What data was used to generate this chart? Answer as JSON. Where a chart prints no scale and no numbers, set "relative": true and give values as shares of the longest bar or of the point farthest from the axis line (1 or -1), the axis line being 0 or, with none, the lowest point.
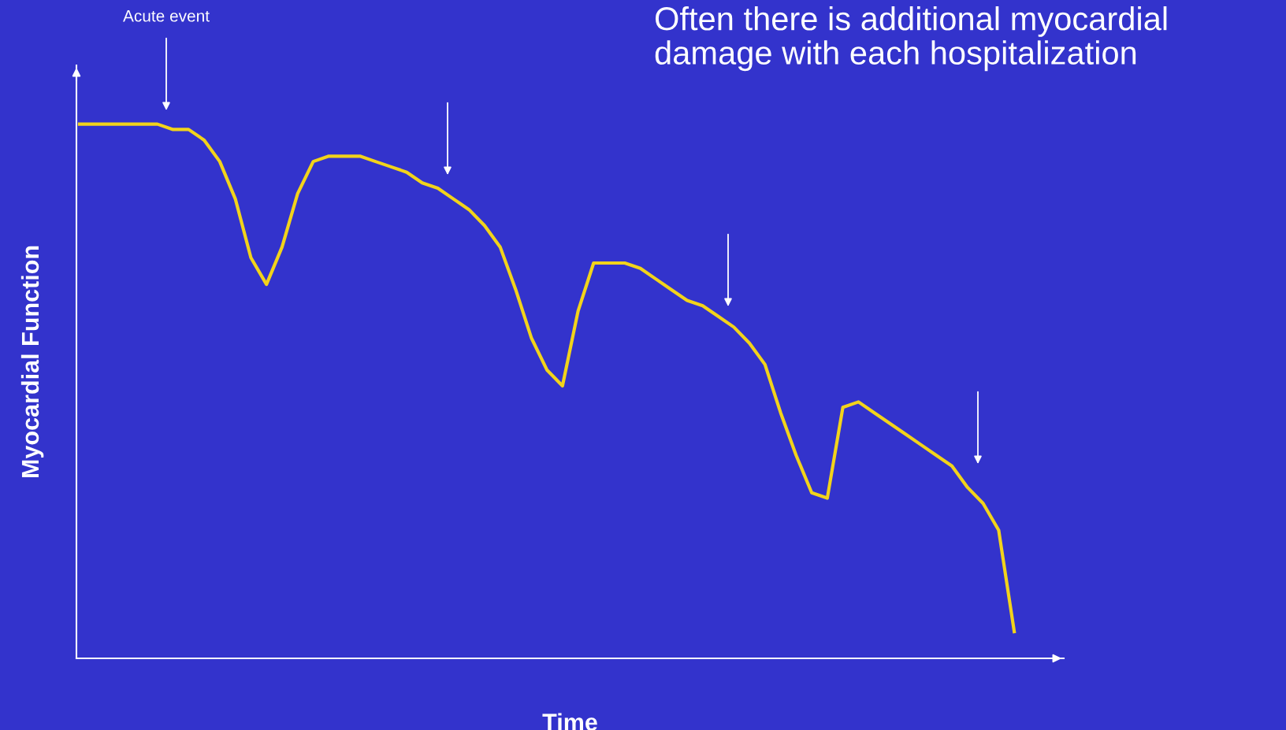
{
  "chart_data": {
    "type": "line",
    "relative": true,
    "title": "Often there is additional myocardial damage with each hospitalization",
    "xlabel": "Time",
    "ylabel": "Myocardial Function",
    "annotations": [
      "Acute event"
    ],
    "legend": false,
    "marker": "none",
    "line_style": "solid",
    "tick_labels": false,
    "categories": [
      null,
      null,
      null,
      null,
      null,
      null,
      null,
      null,
      null,
      null,
      null,
      null,
      null,
      null,
      null,
      null,
      null,
      null,
      null,
      null,
      null,
      null,
      null,
      null,
      null,
      null,
      null,
      null,
      null,
      null,
      null,
      null,
      null,
      null,
      null,
      null,
      null,
      null,
      null,
      null,
      null,
      null,
      null,
      null,
      null,
      null,
      null,
      null,
      null,
      null,
      null,
      null,
      null,
      null,
      null,
      null,
      null,
      null,
      null,
      null,
      null
    ],
    "series": [
      {
        "color": "#f2d31b",
        "values": [
          1.0,
          1.0,
          1.0,
          1.0,
          1.0,
          1.0,
          0.99,
          0.99,
          0.97,
          0.93,
          0.86,
          0.75,
          0.7,
          0.77,
          0.87,
          0.93,
          0.94,
          0.94,
          0.94,
          0.93,
          0.92,
          0.91,
          0.89,
          0.88,
          0.86,
          0.84,
          0.81,
          0.77,
          0.69,
          0.6,
          0.54,
          0.51,
          0.65,
          0.74,
          0.74,
          0.74,
          0.73,
          0.71,
          0.69,
          0.67,
          0.66,
          0.64,
          0.62,
          0.59,
          0.55,
          0.46,
          0.38,
          0.31,
          0.3,
          0.47,
          0.48,
          0.46,
          0.44,
          0.42,
          0.4,
          0.38,
          0.36,
          0.32,
          0.29,
          0.24,
          0.05
        ]
      }
    ]
  }
}
